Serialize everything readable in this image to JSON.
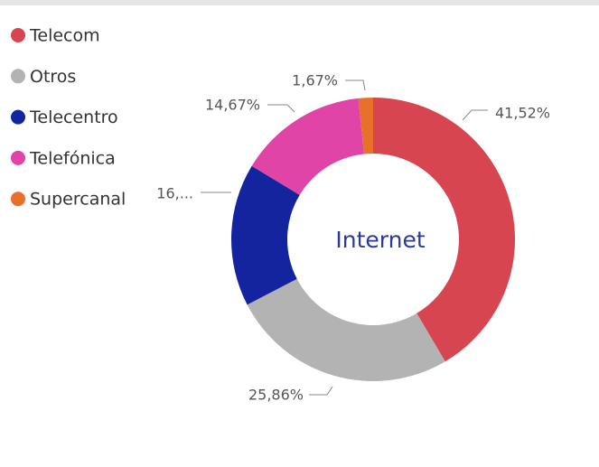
{
  "chart_data": {
    "type": "donut",
    "categories": [
      "Telecom",
      "Otros",
      "Telecentro",
      "Telefónica",
      "Supercanal"
    ],
    "values": [
      41.52,
      25.86,
      16.28,
      14.67,
      1.67
    ],
    "value_labels": [
      "41,52%",
      "25,86%",
      "16,...",
      "14,67%",
      "1,67%"
    ],
    "colors": [
      "#d64550",
      "#b3b3b3",
      "#13249e",
      "#e044a7",
      "#e8702a"
    ],
    "center_label": "Internet",
    "legend": "top-left"
  }
}
